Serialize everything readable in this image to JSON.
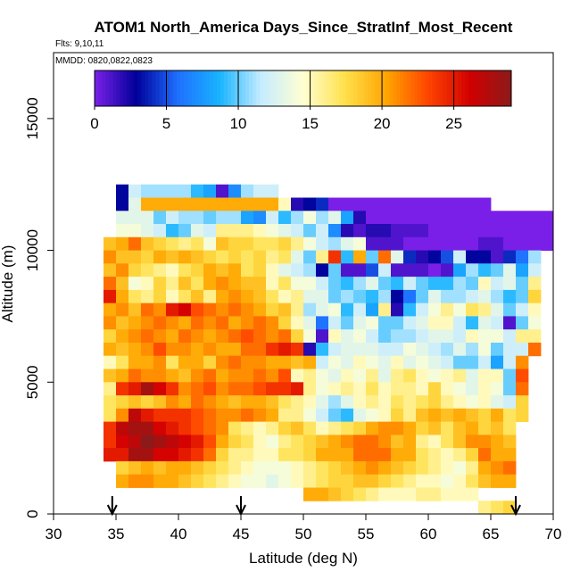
{
  "chart_data": {
    "type": "heatmap",
    "title": "ATOM1 North_America Days_Since_StratInf_Most_Recent",
    "subtitle_flights": "Flts: 9,10,11",
    "subtitle_dates": "MMDD: 0820,0822,0823",
    "xlabel": "Latitude (deg N)",
    "ylabel": "Altitude (m)",
    "xlim": [
      30,
      70
    ],
    "ylim": [
      0,
      17500
    ],
    "x_ticks": [
      "30",
      "35",
      "40",
      "45",
      "50",
      "55",
      "60",
      "65",
      "70"
    ],
    "y_ticks": [
      "0",
      "5000",
      "10000",
      "15000"
    ],
    "colorbar": {
      "range": [
        0,
        29
      ],
      "ticks": [
        "0",
        "5",
        "10",
        "15",
        "20",
        "25"
      ],
      "stops": [
        "#7a1fe8",
        "#00009a",
        "#1e6fff",
        "#19b4ff",
        "#c6ecff",
        "#ffffd2",
        "#ffe14d",
        "#ffa500",
        "#ff4500",
        "#d20000",
        "#8c1a1a"
      ]
    },
    "bin_size": {
      "lat": 1,
      "alt_m": 500
    },
    "flight_markers_lat": [
      34.7,
      45.0,
      67.0
    ],
    "rows": [
      {
        "alt": 12750,
        "lat0": 35,
        "values": [
          null,
          null,
          null
        ]
      },
      {
        "alt": 12250,
        "lat0": 35,
        "values": [
          3,
          12,
          11,
          11,
          11,
          11,
          9,
          8,
          1,
          7,
          11,
          12,
          12
        ]
      },
      {
        "alt": 11750,
        "lat0": 35,
        "values": [
          3,
          13,
          20,
          20,
          20,
          20,
          20,
          20,
          20,
          20,
          20,
          20,
          20,
          15,
          2,
          3,
          4,
          0,
          0,
          0,
          0,
          0,
          0,
          0,
          0,
          0,
          0,
          0,
          0,
          0
        ]
      },
      {
        "alt": 11250,
        "lat0": 35,
        "values": [
          13,
          13,
          13,
          10,
          12,
          11,
          11,
          10,
          11,
          11,
          8,
          7,
          12,
          9,
          11,
          14,
          11,
          13,
          8,
          2,
          0,
          0,
          0,
          0,
          0,
          0,
          0,
          0,
          0,
          0,
          0,
          0,
          0,
          0,
          0
        ]
      },
      {
        "alt": 10750,
        "lat0": 35,
        "values": [
          14,
          14,
          13,
          12,
          9,
          10,
          13,
          12,
          16,
          16,
          16,
          15,
          14,
          13,
          12,
          10,
          12,
          7,
          2,
          1,
          2,
          2,
          1,
          1,
          1,
          0,
          0,
          0,
          0,
          0,
          0,
          0,
          0,
          0,
          0
        ]
      },
      {
        "alt": 10250,
        "lat0": 34,
        "values": [
          19,
          20,
          22,
          19,
          18,
          17,
          16,
          17,
          14,
          19,
          18,
          18,
          17,
          17,
          18,
          16,
          14,
          12,
          11,
          13,
          14,
          1,
          1,
          1,
          0,
          0,
          0,
          0,
          0,
          0,
          1,
          1,
          0,
          0,
          0,
          0
        ]
      },
      {
        "alt": 9750,
        "lat0": 34,
        "values": [
          21,
          19,
          19,
          18,
          20,
          19,
          20,
          19,
          18,
          17,
          18,
          17,
          18,
          16,
          17,
          13,
          10,
          16,
          24,
          9,
          20,
          10,
          22,
          13,
          4,
          2,
          3,
          5,
          12,
          3,
          3,
          1,
          4,
          6,
          11
        ]
      },
      {
        "alt": 9250,
        "lat0": 34,
        "values": [
          19,
          21,
          18,
          17,
          16,
          15,
          17,
          18,
          20,
          19,
          20,
          17,
          18,
          15,
          13,
          12,
          11,
          3,
          10,
          1,
          1,
          5,
          12,
          1,
          1,
          1,
          0,
          1,
          8,
          11,
          9,
          10,
          13,
          8,
          12
        ]
      },
      {
        "alt": 8750,
        "lat0": 34,
        "values": [
          22,
          19,
          14,
          15,
          18,
          16,
          19,
          17,
          20,
          21,
          20,
          19,
          19,
          15,
          17,
          14,
          14,
          12,
          10,
          9,
          11,
          13,
          10,
          9,
          12,
          10,
          9,
          9,
          11,
          10,
          15,
          12,
          13,
          10,
          16
        ]
      },
      {
        "alt": 8250,
        "lat0": 34,
        "values": [
          25,
          20,
          17,
          16,
          18,
          15,
          17,
          19,
          16,
          20,
          21,
          20,
          19,
          17,
          15,
          16,
          13,
          13,
          10,
          11,
          10,
          9,
          11,
          3,
          6,
          10,
          13,
          11,
          11,
          12,
          13,
          11,
          9,
          10,
          18
        ]
      },
      {
        "alt": 7750,
        "lat0": 34,
        "values": [
          20,
          21,
          19,
          22,
          21,
          25,
          26,
          23,
          22,
          21,
          22,
          21,
          20,
          18,
          19,
          16,
          11,
          13,
          14,
          9,
          12,
          8,
          16,
          2,
          9,
          12,
          14,
          16,
          14,
          17,
          16,
          13,
          10,
          12,
          15
        ]
      },
      {
        "alt": 7250,
        "lat0": 34,
        "values": [
          21,
          19,
          20,
          21,
          22,
          21,
          20,
          22,
          21,
          22,
          20,
          21,
          22,
          21,
          18,
          15,
          13,
          6,
          12,
          10,
          13,
          14,
          10,
          10,
          12,
          13,
          15,
          15,
          12,
          9,
          13,
          12,
          1,
          10,
          14
        ]
      },
      {
        "alt": 6750,
        "lat0": 34,
        "values": [
          18,
          20,
          21,
          22,
          21,
          20,
          22,
          21,
          20,
          21,
          22,
          23,
          22,
          21,
          22,
          18,
          14,
          1,
          15,
          13,
          14,
          12,
          10,
          11,
          11,
          12,
          13,
          13,
          12,
          15,
          14,
          14,
          12,
          16,
          16
        ]
      },
      {
        "alt": 6250,
        "lat0": 34,
        "values": [
          20,
          19,
          20,
          21,
          23,
          21,
          21,
          20,
          21,
          20,
          20,
          22,
          22,
          24,
          25,
          24,
          2,
          9,
          12,
          13,
          13,
          13,
          12,
          12,
          14,
          13,
          12,
          11,
          13,
          11,
          14,
          10,
          12,
          12,
          22
        ]
      },
      {
        "alt": 5750,
        "lat0": 34,
        "values": [
          15,
          17,
          20,
          20,
          21,
          17,
          20,
          20,
          18,
          21,
          22,
          21,
          21,
          20,
          20,
          19,
          20,
          12,
          14,
          13,
          15,
          14,
          13,
          15,
          13,
          14,
          13,
          12,
          10,
          10,
          12,
          8,
          12,
          21
        ]
      },
      {
        "alt": 5250,
        "lat0": 34,
        "values": [
          19,
          20,
          22,
          21,
          21,
          20,
          19,
          21,
          22,
          20,
          21,
          21,
          22,
          21,
          23,
          15,
          16,
          14,
          13,
          15,
          14,
          16,
          13,
          16,
          17,
          15,
          14,
          15,
          16,
          13,
          15,
          15,
          10,
          23
        ]
      },
      {
        "alt": 4750,
        "lat0": 34,
        "values": [
          16,
          24,
          25,
          28,
          26,
          24,
          21,
          22,
          23,
          21,
          22,
          22,
          23,
          24,
          24,
          25,
          16,
          14,
          15,
          16,
          15,
          17,
          15,
          16,
          16,
          15,
          18,
          15,
          14,
          13,
          15,
          14,
          10,
          22
        ]
      },
      {
        "alt": 4250,
        "lat0": 34,
        "values": [
          17,
          18,
          19,
          18,
          19,
          21,
          20,
          22,
          21,
          20,
          19,
          20,
          20,
          19,
          17,
          16,
          15,
          13,
          11,
          13,
          15,
          16,
          15,
          17,
          16,
          17,
          18,
          16,
          15,
          14,
          15,
          13,
          12,
          18
        ]
      },
      {
        "alt": 3750,
        "lat0": 34,
        "values": [
          17,
          21,
          27,
          25,
          24,
          24,
          24,
          23,
          22,
          21,
          21,
          22,
          21,
          20,
          16,
          16,
          14,
          12,
          10,
          9,
          13,
          14,
          15,
          18,
          16,
          19,
          20,
          19,
          20,
          19,
          18,
          20,
          17,
          18
        ]
      },
      {
        "alt": 3250,
        "lat0": 34,
        "values": [
          24,
          27,
          28,
          28,
          26,
          25,
          24,
          23,
          22,
          21,
          17,
          16,
          15,
          16,
          18,
          19,
          17,
          15,
          16,
          17,
          18,
          20,
          21,
          21,
          20,
          18,
          19,
          17,
          19,
          20,
          18,
          19,
          17
        ]
      },
      {
        "alt": 2750,
        "lat0": 34,
        "values": [
          24,
          26,
          27,
          29,
          28,
          27,
          26,
          25,
          23,
          20,
          18,
          17,
          15,
          14,
          16,
          17,
          18,
          19,
          20,
          21,
          22,
          22,
          21,
          19,
          20,
          16,
          15,
          17,
          19,
          21,
          21,
          20,
          19
        ]
      },
      {
        "alt": 2250,
        "lat0": 34,
        "values": [
          25,
          25,
          28,
          28,
          26,
          26,
          25,
          24,
          22,
          18,
          16,
          16,
          15,
          15,
          17,
          17,
          18,
          20,
          20,
          20,
          22,
          22,
          22,
          20,
          20,
          17,
          16,
          15,
          16,
          18,
          22,
          20,
          20
        ]
      },
      {
        "alt": 1750,
        "lat0": 35,
        "values": [
          18,
          19,
          20,
          19,
          20,
          20,
          19,
          18,
          17,
          16,
          15,
          14,
          14,
          14,
          15,
          16,
          17,
          18,
          19,
          20,
          21,
          20,
          19,
          18,
          17,
          16,
          15,
          14,
          16,
          20,
          21,
          22
        ]
      },
      {
        "alt": 1250,
        "lat0": 35,
        "values": [
          20,
          21,
          21,
          20,
          20,
          19,
          18,
          17,
          16,
          15,
          14,
          14,
          13,
          14,
          15,
          16,
          17,
          18,
          18,
          19,
          19,
          18,
          17,
          16,
          15,
          15,
          14,
          15,
          17,
          19,
          20,
          20
        ]
      },
      {
        "alt": 750,
        "lat0": 50,
        "values": [
          20,
          20,
          19,
          18,
          17,
          16,
          15,
          15,
          15,
          16,
          16,
          15,
          15,
          15
        ]
      },
      {
        "alt": 250,
        "lat0": 64,
        "values": [
          16,
          17,
          18
        ]
      }
    ]
  }
}
